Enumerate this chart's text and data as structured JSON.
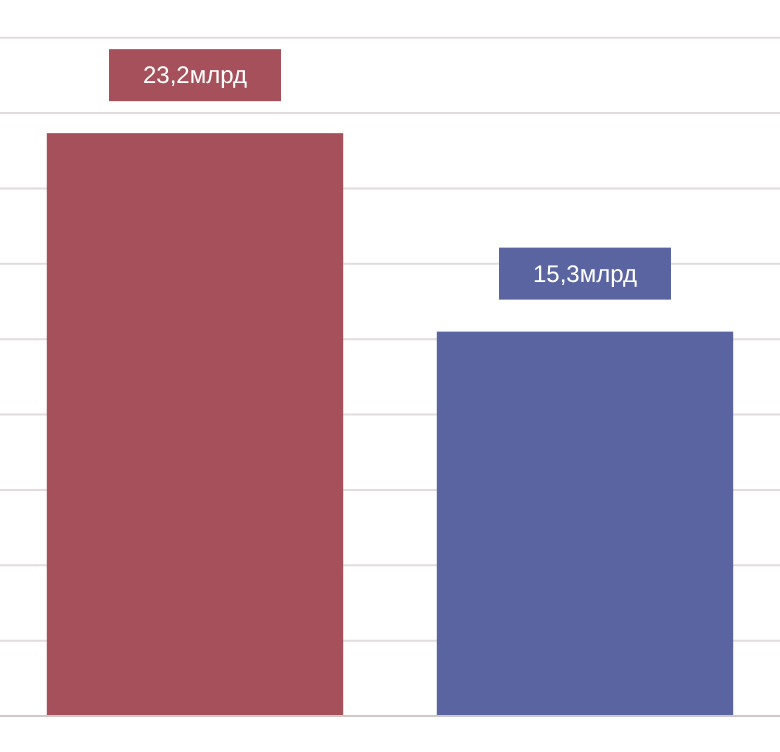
{
  "chart_data": {
    "type": "bar",
    "categories": [
      null,
      null
    ],
    "values": [
      23.2,
      15.3
    ],
    "colors": [
      "#a5505a",
      "#5a64a0"
    ],
    "value_labels": [
      "23,2млрд",
      "15,3млрд"
    ],
    "ylim": [
      0,
      28.5
    ],
    "yticks": [
      {
        "value": 0,
        "label": null
      },
      {
        "value": 3,
        "label": null
      },
      {
        "value": 6,
        "label": null
      },
      {
        "value": 9,
        "label": null
      },
      {
        "value": 12,
        "label": null
      },
      {
        "value": 15,
        "label": null
      },
      {
        "value": 18,
        "label": null
      },
      {
        "value": 21,
        "label": null
      },
      {
        "value": 24,
        "label": null
      },
      {
        "value": 27,
        "label": null
      }
    ],
    "grid": "y"
  }
}
